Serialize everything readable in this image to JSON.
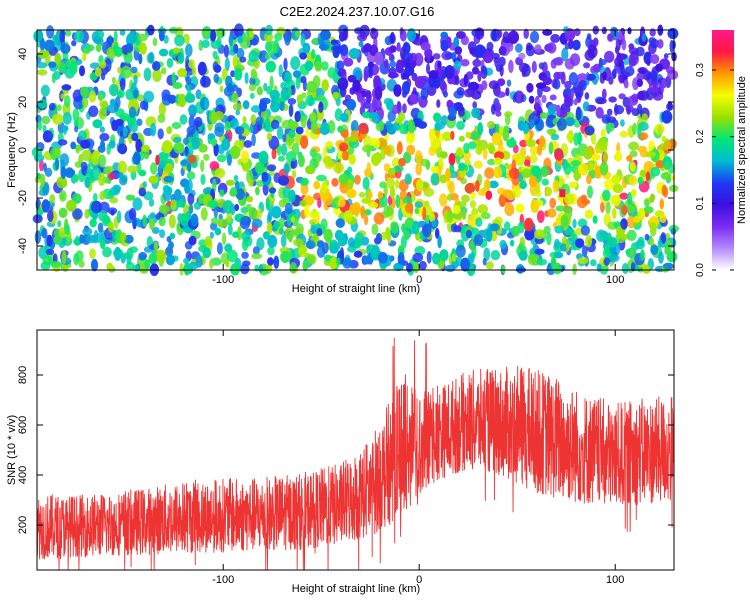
{
  "title": "C2E2.2024.237.10.07.G16",
  "chart_data": [
    {
      "type": "heatmap",
      "xlabel": "Height of straight line (km)",
      "ylabel": "Frequency (Hz)",
      "xlim": [
        -195,
        130
      ],
      "ylim": [
        -50,
        50
      ],
      "xticks": [
        -100,
        0,
        100
      ],
      "yticks": [
        -40,
        -20,
        0,
        20,
        40
      ],
      "xtick_labels": [
        "-100",
        "0",
        "100"
      ],
      "ytick_labels": [
        "-40",
        "-20",
        "0",
        "20",
        "40"
      ],
      "colorbar": {
        "label": "Normalized spectral amplitude",
        "range": [
          0,
          0.36
        ],
        "ticks": [
          0.0,
          0.1,
          0.2,
          0.3
        ],
        "tick_labels": [
          "0.0",
          "0.1",
          "0.2",
          "0.3"
        ],
        "colormap": [
          "#ffffff",
          "#b388ff",
          "#7b2cf0",
          "#3a10e0",
          "#1d3cf5",
          "#00bcd4",
          "#00e676",
          "#9be000",
          "#f4ff00",
          "#ff9800",
          "#ff1744",
          "#ff1a8c"
        ]
      },
      "description_values": {
        "peak_x": 73,
        "peak_y": -18,
        "peak_amplitude": 0.33
      }
    },
    {
      "type": "line",
      "xlabel": "Height of straight line (km)",
      "ylabel": "SNR (10 * v/v)",
      "xlim": [
        -195,
        130
      ],
      "ylim": [
        20,
        980
      ],
      "xticks": [
        -100,
        0,
        100
      ],
      "yticks": [
        200,
        400,
        600,
        800
      ],
      "xtick_labels": [
        "-100",
        "0",
        "100"
      ],
      "ytick_labels": [
        "200",
        "400",
        "600",
        "800"
      ],
      "series": [
        {
          "color": "#ee3333",
          "envelope": {
            "x": [
              -195,
              -180,
              -160,
              -140,
              -120,
              -100,
              -80,
              -60,
              -40,
              -25,
              -15,
              -8,
              0,
              10,
              25,
              40,
              55,
              70,
              85,
              100,
              115,
              130
            ],
            "lower": [
              60,
              70,
              75,
              80,
              85,
              90,
              95,
              100,
              120,
              150,
              200,
              250,
              320,
              380,
              420,
              400,
              340,
              300,
              280,
              270,
              280,
              290
            ],
            "upper": [
              330,
              320,
              330,
              350,
              380,
              390,
              390,
              410,
              450,
              550,
              700,
              820,
              730,
              760,
              820,
              830,
              840,
              800,
              730,
              690,
              710,
              720
            ],
            "mean": [
              170,
              170,
              175,
              185,
              195,
              205,
              215,
              225,
              250,
              300,
              380,
              430,
              460,
              500,
              560,
              580,
              530,
              470,
              440,
              420,
              430,
              440
            ]
          }
        }
      ]
    }
  ]
}
